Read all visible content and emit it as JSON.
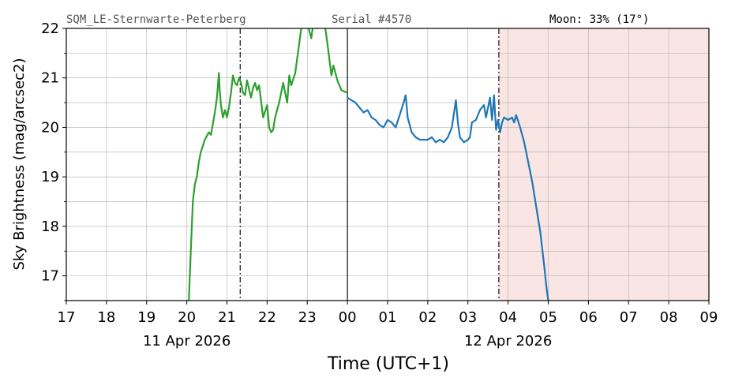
{
  "header": {
    "station": "SQM_LE-Sternwarte-Peterberg",
    "serial": "Serial #4570",
    "moon": "Moon: 33% (17°)"
  },
  "chart_data": {
    "type": "line",
    "title": "",
    "xlabel": "Time (UTC+1)",
    "ylabel": "Sky Brightness (mag/arcsec2)",
    "xlim": [
      17,
      33
    ],
    "ylim": [
      16.5,
      22
    ],
    "x_ticks": [
      17,
      18,
      19,
      20,
      21,
      22,
      23,
      24,
      25,
      26,
      27,
      28,
      29,
      30,
      31,
      32,
      33
    ],
    "x_tick_labels": [
      "17",
      "18",
      "19",
      "20",
      "21",
      "22",
      "23",
      "00",
      "01",
      "02",
      "03",
      "04",
      "05",
      "06",
      "07",
      "08",
      "09"
    ],
    "y_ticks": [
      17,
      18,
      19,
      20,
      21,
      22
    ],
    "y_tick_labels": [
      "17",
      "18",
      "19",
      "20",
      "21",
      "22"
    ],
    "date_labels": [
      {
        "x": 20,
        "text": "11 Apr 2026"
      },
      {
        "x": 28,
        "text": "12 Apr 2026"
      }
    ],
    "grid": true,
    "reference_lines": [
      {
        "x": 21.33,
        "style": "dashdot"
      },
      {
        "x": 24.0,
        "style": "solid"
      },
      {
        "x": 27.77,
        "style": "dashdot"
      }
    ],
    "shaded_region": {
      "x0": 27.77,
      "x1": 33,
      "color": "#fae5e5"
    },
    "series": [
      {
        "color": "#2ca02c",
        "x": [
          20.05,
          20.1,
          20.15,
          20.2,
          20.25,
          20.3,
          20.35,
          20.45,
          20.55,
          20.6,
          20.7,
          20.75,
          20.8,
          20.82,
          20.85,
          20.9,
          20.95,
          21.0,
          21.05,
          21.1,
          21.15,
          21.2,
          21.25,
          21.3,
          21.35,
          21.4,
          21.45,
          21.5,
          21.6,
          21.65,
          21.7,
          21.75,
          21.8,
          21.9,
          22.0,
          22.05,
          22.1,
          22.15,
          22.2,
          22.3,
          22.4,
          22.5,
          22.55,
          22.6,
          22.7,
          22.8,
          22.85,
          22.9,
          23.0,
          23.1,
          23.15,
          23.25,
          23.35,
          23.45,
          23.5,
          23.6,
          23.65,
          23.75,
          23.85,
          24.0
        ],
        "y": [
          16.5,
          17.5,
          18.5,
          18.85,
          19.0,
          19.3,
          19.5,
          19.75,
          19.9,
          19.85,
          20.3,
          20.6,
          21.1,
          20.75,
          20.45,
          20.2,
          20.35,
          20.2,
          20.4,
          20.7,
          21.05,
          20.9,
          20.85,
          21.0,
          20.9,
          20.7,
          20.65,
          20.95,
          20.6,
          20.8,
          20.9,
          20.75,
          20.85,
          20.2,
          20.45,
          20.0,
          19.9,
          19.95,
          20.2,
          20.5,
          20.9,
          20.5,
          21.05,
          20.85,
          21.1,
          21.7,
          22.0,
          22.1,
          22.1,
          21.8,
          22.1,
          22.0,
          22.1,
          22.0,
          21.7,
          21.05,
          21.25,
          20.95,
          20.75,
          20.7
        ]
      },
      {
        "color": "#1f77b4",
        "x": [
          24.0,
          24.1,
          24.2,
          24.3,
          24.4,
          24.5,
          24.6,
          24.7,
          24.8,
          24.9,
          25.0,
          25.1,
          25.2,
          25.3,
          25.4,
          25.45,
          25.5,
          25.55,
          25.6,
          25.7,
          25.8,
          25.9,
          26.0,
          26.1,
          26.2,
          26.3,
          26.4,
          26.5,
          26.6,
          26.7,
          26.75,
          26.8,
          26.9,
          27.0,
          27.05,
          27.1,
          27.2,
          27.3,
          27.4,
          27.45,
          27.5,
          27.55,
          27.6,
          27.65,
          27.7,
          27.75,
          27.8,
          27.85,
          27.9,
          28.0,
          28.1,
          28.15,
          28.2,
          28.3,
          28.4,
          28.5,
          28.6,
          28.7,
          28.8,
          28.9,
          28.95,
          29.0
        ],
        "y": [
          20.6,
          20.55,
          20.5,
          20.4,
          20.3,
          20.35,
          20.2,
          20.15,
          20.05,
          20.0,
          20.15,
          20.1,
          20.0,
          20.25,
          20.5,
          20.65,
          20.2,
          20.05,
          19.9,
          19.8,
          19.75,
          19.75,
          19.75,
          19.8,
          19.7,
          19.75,
          19.7,
          19.8,
          20.0,
          20.55,
          20.1,
          19.8,
          19.7,
          19.75,
          19.8,
          20.1,
          20.15,
          20.35,
          20.45,
          20.2,
          20.4,
          20.6,
          20.15,
          20.65,
          19.95,
          20.15,
          19.9,
          20.1,
          20.2,
          20.15,
          20.2,
          20.1,
          20.25,
          20.0,
          19.7,
          19.3,
          18.9,
          18.4,
          17.9,
          17.2,
          16.8,
          16.5
        ]
      }
    ]
  }
}
